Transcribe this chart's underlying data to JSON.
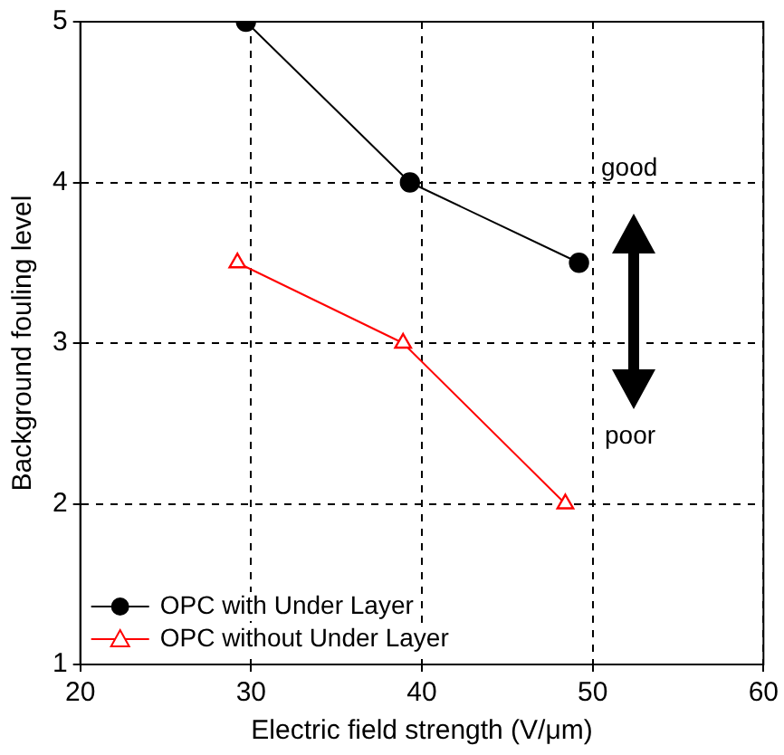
{
  "chart_data": {
    "type": "line",
    "xlabel": "Electric field strength (V/μm)",
    "ylabel": "Background fouling level",
    "xlim": [
      20,
      60
    ],
    "xticks": [
      20,
      30,
      40,
      50,
      60
    ],
    "ylim": [
      1,
      5
    ],
    "yticks": [
      1,
      2,
      3,
      4,
      5
    ],
    "grid": true,
    "legend": "bottom left",
    "annotations": [
      "good",
      "poor"
    ],
    "series": [
      {
        "name": "OPC with Under Layer",
        "color": "#000000",
        "marker": "circle",
        "x": [
          29.7,
          39.3,
          49.2
        ],
        "values": [
          5,
          4,
          3.5
        ]
      },
      {
        "name": "OPC without Under Layer",
        "color": "#ff0000",
        "marker": "triangle",
        "x": [
          29.2,
          38.9,
          48.4
        ],
        "values": [
          3.5,
          3,
          2
        ]
      }
    ]
  }
}
